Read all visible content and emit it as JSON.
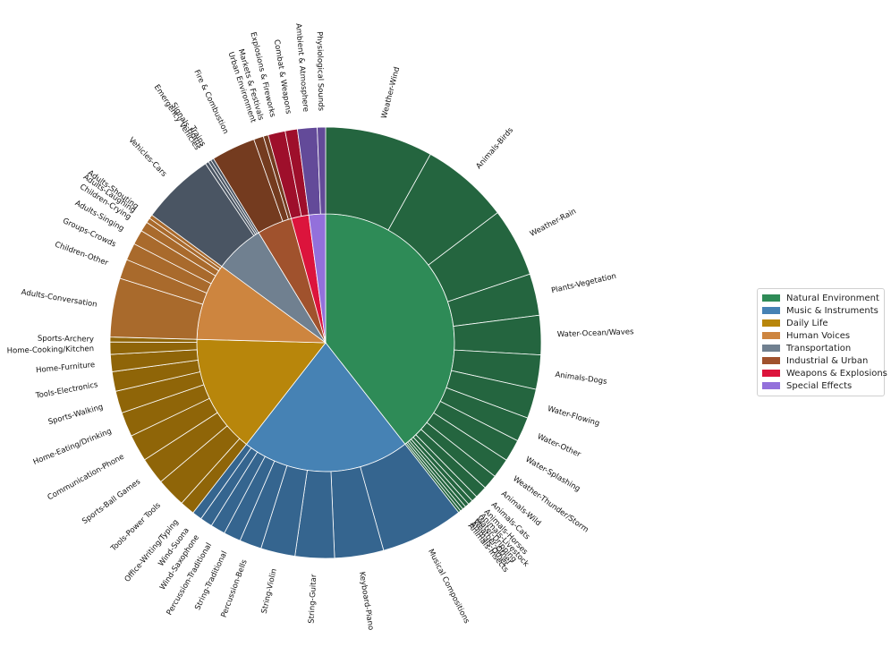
{
  "chart_data": {
    "type": "sunburst",
    "title": "",
    "categories": [
      {
        "name": "Natural Environment",
        "color": "#2e8b57",
        "outer_color": "#24653f",
        "children": [
          {
            "name": "Weather-Wind",
            "value": 22
          },
          {
            "name": "Animals-Birds",
            "value": 18
          },
          {
            "name": "Weather-Rain",
            "value": 14
          },
          {
            "name": "Plants-Vegetation",
            "value": 8.5
          },
          {
            "name": "Water-Ocean/Waves",
            "value": 8
          },
          {
            "name": "Animals-Dogs",
            "value": 7
          },
          {
            "name": "Water-Flowing",
            "value": 6
          },
          {
            "name": "Water-Other",
            "value": 5
          },
          {
            "name": "Water-Splashing",
            "value": 4.5
          },
          {
            "name": "Weather-Thunder/Storm",
            "value": 4
          },
          {
            "name": "Animals-Wild",
            "value": 3
          },
          {
            "name": "Animals-Cats",
            "value": 2.5
          },
          {
            "name": "Animals-Horses",
            "value": 1.2
          },
          {
            "name": "Animals-Livestock",
            "value": 1
          },
          {
            "name": "Water-Dripping",
            "value": 0.8
          },
          {
            "name": "Weather-Other",
            "value": 0.7
          },
          {
            "name": "Animals-Other",
            "value": 0.6
          },
          {
            "name": "Animals-Insects",
            "value": 0.5
          }
        ]
      },
      {
        "name": "Music & Instruments",
        "color": "#4682b4",
        "outer_color": "#35658f",
        "children": [
          {
            "name": "Musical Compositions",
            "value": 17
          },
          {
            "name": "Keyboard-Piano",
            "value": 10
          },
          {
            "name": "String-Guitar",
            "value": 8
          },
          {
            "name": "String-Violin",
            "value": 7
          },
          {
            "name": "Percussion-Bells",
            "value": 4.5
          },
          {
            "name": "String-Traditional",
            "value": 3.5
          },
          {
            "name": "Percussion-Traditional",
            "value": 3
          },
          {
            "name": "Wind-Saxophone",
            "value": 2.5
          },
          {
            "name": "Wind-Suona",
            "value": 2
          }
        ]
      },
      {
        "name": "Daily Life",
        "color": "#b8860b",
        "outer_color": "#8f6508",
        "children": [
          {
            "name": "Office-Writing/Typing",
            "value": 3
          },
          {
            "name": "Tools-Power Tools",
            "value": 6
          },
          {
            "name": "Sports-Ball Games",
            "value": 5.5
          },
          {
            "name": "Communication-Phone",
            "value": 5.5
          },
          {
            "name": "Home-Eating/Drinking",
            "value": 5
          },
          {
            "name": "Sports-Walking",
            "value": 4.5
          },
          {
            "name": "Tools-Electronics",
            "value": 4
          },
          {
            "name": "Home-Furniture",
            "value": 3.5
          },
          {
            "name": "Home-Cooking/Kitchen",
            "value": 2.5
          },
          {
            "name": "Sports-Archery",
            "value": 1
          }
        ]
      },
      {
        "name": "Human Voices",
        "color": "#cd853f",
        "outer_color": "#a96a2c",
        "children": [
          {
            "name": "Adults-Conversation",
            "value": 12
          },
          {
            "name": "Children-Other",
            "value": 4
          },
          {
            "name": "Groups-Crowds",
            "value": 3.5
          },
          {
            "name": "Adults-Singing",
            "value": 3
          },
          {
            "name": "Children-Crying",
            "value": 2
          },
          {
            "name": "Adults-Laughing",
            "value": 1
          },
          {
            "name": "Adults-Shouting",
            "value": 0.8
          }
        ]
      },
      {
        "name": "Transportation",
        "color": "#708090",
        "outer_color": "#4a5563",
        "children": [
          {
            "name": "Vehicles-Cars",
            "value": 15
          },
          {
            "name": "Emergency Vehicles",
            "value": 0.7
          },
          {
            "name": "Signals-Horns",
            "value": 0.6
          },
          {
            "name": "Trains",
            "value": 0.6
          }
        ]
      },
      {
        "name": "Industrial & Urban",
        "color": "#a0522d",
        "outer_color": "#743b1f",
        "children": [
          {
            "name": "Fire & Combustion",
            "value": 9
          },
          {
            "name": "Urban Environment",
            "value": 2
          },
          {
            "name": "Markets & Festivals",
            "value": 1
          }
        ]
      },
      {
        "name": "Weapons & Explosions",
        "color": "#dc143c",
        "outer_color": "#9e0f2b",
        "children": [
          {
            "name": "Explosions & Fireworks",
            "value": 3.5
          },
          {
            "name": "Combat & Weapons",
            "value": 2.5
          }
        ]
      },
      {
        "name": "Special Effects",
        "color": "#9370db",
        "outer_color": "#634a99",
        "children": [
          {
            "name": "Ambient & Atmosphere",
            "value": 4
          },
          {
            "name": "Physiological Sounds",
            "value": 1.7
          }
        ]
      }
    ],
    "legend_position": "center-right"
  }
}
